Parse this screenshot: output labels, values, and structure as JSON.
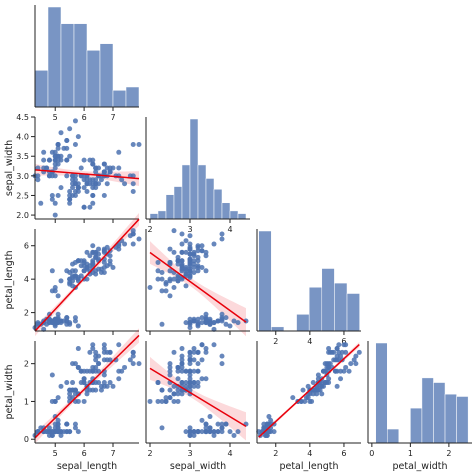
{
  "chart_data": {
    "type": "pairplot",
    "title": "",
    "variables": [
      "sepal_length",
      "sepal_width",
      "petal_length",
      "petal_width"
    ],
    "corner": true,
    "diagonal": "histogram",
    "offdiagonal": "scatter with linear regression fit and confidence band",
    "colors": {
      "points": "#4c72b0",
      "bars": "#4c72b0",
      "regression": "#e8000b"
    },
    "axes": {
      "sepal_length": {
        "range": [
          4.3,
          7.9
        ],
        "ticks": [
          5,
          6,
          7
        ],
        "tick_labels": [
          "5",
          "6",
          "7"
        ]
      },
      "sepal_width": {
        "range": [
          1.9,
          4.5
        ],
        "ticks": [
          2.0,
          2.5,
          3.0,
          3.5,
          4.0,
          4.5
        ],
        "tick_labels": [
          "2.0",
          "2.5",
          "3.0",
          "3.5",
          "4.0",
          "4.5"
        ],
        "x_ticks": [
          2,
          3,
          4
        ],
        "x_tick_labels": [
          "2",
          "3",
          "4"
        ]
      },
      "petal_length": {
        "range": [
          0.9,
          7.0
        ],
        "ticks": [
          2,
          4,
          6
        ],
        "tick_labels": [
          "2",
          "4",
          "6"
        ]
      },
      "petal_width": {
        "range": [
          -0.1,
          2.6
        ],
        "ticks": [
          0,
          1,
          2
        ],
        "tick_labels": [
          "0",
          "1",
          "2"
        ]
      }
    },
    "histograms": {
      "sepal_length": {
        "bin_edges": [
          4.3,
          4.75,
          5.2,
          5.65,
          6.1,
          6.55,
          7.0,
          7.45,
          7.9
        ],
        "counts": [
          11,
          30,
          25,
          25,
          17,
          19,
          5,
          6
        ]
      },
      "sepal_width": {
        "bin_edges": [
          2.0,
          2.2,
          2.4,
          2.6,
          2.8,
          3.0,
          3.2,
          3.4,
          3.6,
          3.8,
          4.0,
          4.2,
          4.4
        ],
        "counts": [
          2,
          3,
          9,
          12,
          20,
          37,
          20,
          15,
          11,
          6,
          3,
          2
        ]
      },
      "petal_length": {
        "bin_edges": [
          1.0,
          1.74,
          2.48,
          3.22,
          3.96,
          4.7,
          5.44,
          6.18,
          6.92
        ],
        "counts": [
          48,
          2,
          0,
          8,
          21,
          30,
          23,
          18
        ]
      },
      "petal_width": {
        "bin_edges": [
          0.1,
          0.4,
          0.7,
          1.0,
          1.3,
          1.6,
          1.9,
          2.2,
          2.5
        ],
        "counts": [
          43,
          6,
          0,
          15,
          28,
          26,
          21,
          20
        ]
      }
    },
    "scatter": {
      "sepal_length": [
        5.1,
        4.9,
        4.7,
        4.6,
        5.0,
        5.4,
        4.6,
        5.0,
        4.4,
        4.9,
        5.4,
        4.8,
        4.8,
        4.3,
        5.8,
        5.7,
        5.4,
        5.1,
        5.7,
        5.1,
        5.4,
        5.1,
        4.6,
        5.1,
        4.8,
        5.0,
        5.0,
        5.2,
        5.2,
        4.7,
        4.8,
        5.4,
        5.2,
        5.5,
        4.9,
        5.0,
        5.5,
        4.9,
        4.4,
        5.1,
        5.0,
        4.5,
        4.4,
        5.0,
        5.1,
        4.8,
        5.1,
        4.6,
        5.3,
        5.0,
        7.0,
        6.4,
        6.9,
        5.5,
        6.5,
        5.7,
        6.3,
        4.9,
        6.6,
        5.2,
        5.0,
        5.9,
        6.0,
        6.1,
        5.6,
        6.7,
        5.6,
        5.8,
        6.2,
        5.6,
        5.9,
        6.1,
        6.3,
        6.1,
        6.4,
        6.6,
        6.8,
        6.7,
        6.0,
        5.7,
        5.5,
        5.5,
        5.8,
        6.0,
        5.4,
        6.0,
        6.7,
        6.3,
        5.6,
        5.5,
        5.5,
        6.1,
        5.8,
        5.0,
        5.6,
        5.7,
        5.7,
        6.2,
        5.1,
        5.7,
        6.3,
        5.8,
        7.1,
        6.3,
        6.5,
        7.6,
        4.9,
        7.3,
        6.7,
        7.2,
        6.5,
        6.4,
        6.8,
        5.7,
        5.8,
        6.4,
        6.5,
        7.7,
        7.7,
        6.0,
        6.9,
        5.6,
        7.7,
        6.3,
        6.7,
        7.2,
        6.2,
        6.1,
        6.4,
        7.2,
        7.4,
        7.9,
        6.4,
        6.3,
        6.1,
        7.7,
        6.3,
        6.4,
        6.0,
        6.9,
        6.7,
        6.9,
        5.8,
        6.8,
        6.7,
        6.7,
        6.3,
        6.5,
        6.2,
        5.9
      ],
      "sepal_width": [
        3.5,
        3.0,
        3.2,
        3.1,
        3.6,
        3.9,
        3.4,
        3.4,
        2.9,
        3.1,
        3.7,
        3.4,
        3.0,
        3.0,
        4.0,
        4.4,
        3.9,
        3.5,
        3.8,
        3.8,
        3.4,
        3.7,
        3.6,
        3.3,
        3.4,
        3.0,
        3.4,
        3.5,
        3.4,
        3.2,
        3.1,
        3.4,
        4.1,
        4.2,
        3.1,
        3.2,
        3.5,
        3.6,
        3.0,
        3.4,
        3.5,
        2.3,
        3.2,
        3.5,
        3.8,
        3.0,
        3.8,
        3.2,
        3.7,
        3.3,
        3.2,
        3.2,
        3.1,
        2.3,
        2.8,
        2.8,
        3.3,
        2.4,
        2.9,
        2.7,
        2.0,
        3.0,
        2.2,
        2.9,
        2.9,
        3.1,
        3.0,
        2.7,
        2.2,
        2.5,
        3.2,
        2.8,
        2.5,
        2.8,
        2.9,
        3.0,
        2.8,
        3.0,
        2.9,
        2.6,
        2.4,
        2.4,
        2.7,
        2.7,
        3.0,
        3.4,
        3.1,
        2.3,
        3.0,
        2.5,
        2.6,
        3.0,
        2.6,
        2.3,
        2.7,
        3.0,
        2.9,
        2.9,
        2.5,
        2.8,
        3.3,
        2.7,
        3.0,
        2.9,
        3.0,
        3.0,
        2.5,
        2.9,
        2.5,
        3.6,
        3.2,
        2.7,
        3.0,
        2.5,
        2.8,
        3.2,
        3.0,
        3.8,
        2.6,
        2.2,
        3.2,
        2.8,
        2.8,
        2.7,
        3.3,
        3.2,
        2.8,
        3.0,
        2.8,
        3.0,
        2.8,
        3.8,
        2.8,
        2.8,
        2.6,
        3.0,
        3.4,
        3.1,
        3.0,
        3.1,
        3.1,
        3.1,
        2.7,
        3.2,
        3.3,
        3.0,
        2.5,
        3.0,
        3.4,
        3.0
      ],
      "petal_length": [
        1.4,
        1.4,
        1.3,
        1.5,
        1.4,
        1.7,
        1.4,
        1.5,
        1.4,
        1.5,
        1.5,
        1.6,
        1.4,
        1.1,
        1.2,
        1.5,
        1.3,
        1.4,
        1.7,
        1.5,
        1.7,
        1.5,
        1.0,
        1.7,
        1.9,
        1.6,
        1.6,
        1.5,
        1.4,
        1.6,
        1.6,
        1.5,
        1.5,
        1.4,
        1.5,
        1.2,
        1.3,
        1.4,
        1.3,
        1.5,
        1.3,
        1.3,
        1.3,
        1.6,
        1.9,
        1.4,
        1.6,
        1.4,
        1.5,
        1.4,
        4.7,
        4.5,
        4.9,
        4.0,
        4.6,
        4.5,
        4.7,
        3.3,
        4.6,
        3.9,
        3.5,
        4.2,
        4.0,
        4.7,
        3.6,
        4.4,
        4.5,
        4.1,
        4.5,
        3.9,
        4.8,
        4.0,
        4.9,
        4.7,
        4.3,
        4.4,
        4.8,
        5.0,
        4.5,
        3.5,
        3.8,
        3.7,
        3.9,
        5.1,
        4.5,
        4.5,
        4.7,
        4.4,
        4.1,
        4.0,
        4.4,
        4.6,
        4.0,
        3.3,
        4.2,
        4.2,
        4.2,
        4.3,
        3.0,
        4.1,
        6.0,
        5.1,
        5.9,
        5.6,
        5.8,
        6.6,
        4.5,
        6.3,
        5.8,
        6.1,
        5.1,
        5.3,
        5.5,
        5.0,
        5.1,
        5.3,
        5.5,
        6.7,
        6.9,
        5.0,
        5.7,
        4.9,
        6.7,
        4.9,
        5.7,
        6.0,
        4.8,
        4.9,
        5.6,
        5.8,
        6.1,
        6.4,
        5.6,
        5.1,
        5.6,
        6.1,
        5.6,
        5.5,
        4.8,
        5.4,
        5.6,
        5.1,
        5.1,
        5.9,
        5.7,
        5.2,
        5.0,
        5.2,
        5.4,
        5.1
      ],
      "petal_width": [
        0.2,
        0.2,
        0.2,
        0.2,
        0.2,
        0.4,
        0.3,
        0.2,
        0.2,
        0.1,
        0.2,
        0.2,
        0.1,
        0.1,
        0.2,
        0.4,
        0.4,
        0.3,
        0.3,
        0.3,
        0.2,
        0.4,
        0.2,
        0.5,
        0.2,
        0.2,
        0.4,
        0.2,
        0.2,
        0.2,
        0.2,
        0.4,
        0.1,
        0.2,
        0.2,
        0.2,
        0.2,
        0.1,
        0.2,
        0.2,
        0.3,
        0.3,
        0.2,
        0.6,
        0.4,
        0.3,
        0.2,
        0.2,
        0.2,
        0.2,
        1.4,
        1.5,
        1.5,
        1.3,
        1.5,
        1.3,
        1.6,
        1.0,
        1.3,
        1.4,
        1.0,
        1.5,
        1.0,
        1.4,
        1.3,
        1.4,
        1.5,
        1.0,
        1.5,
        1.1,
        1.8,
        1.3,
        1.5,
        1.2,
        1.3,
        1.4,
        1.4,
        1.7,
        1.5,
        1.0,
        1.1,
        1.0,
        1.2,
        1.6,
        1.5,
        1.6,
        1.5,
        1.3,
        1.3,
        1.3,
        1.2,
        1.4,
        1.2,
        1.0,
        1.3,
        1.2,
        1.3,
        1.3,
        1.1,
        1.3,
        2.5,
        1.9,
        2.1,
        1.8,
        2.2,
        2.1,
        1.7,
        1.8,
        1.8,
        2.5,
        2.0,
        1.9,
        2.1,
        2.0,
        2.4,
        2.3,
        1.8,
        2.2,
        2.3,
        1.5,
        2.3,
        2.0,
        2.0,
        1.8,
        2.1,
        1.8,
        1.8,
        1.8,
        2.1,
        1.6,
        1.9,
        2.0,
        2.2,
        1.5,
        1.4,
        2.3,
        2.4,
        1.8,
        1.8,
        2.1,
        2.4,
        2.3,
        1.9,
        2.3,
        2.5,
        2.3,
        1.9,
        2.0,
        2.3,
        1.8
      ]
    },
    "regression_fits": [
      {
        "x": "sepal_length",
        "y": "sepal_width",
        "slope": -0.0619,
        "intercept": 3.4189
      },
      {
        "x": "sepal_length",
        "y": "petal_length",
        "slope": 1.8584,
        "intercept": -7.1014
      },
      {
        "x": "sepal_width",
        "y": "petal_length",
        "slope": -1.7351,
        "intercept": 9.0632
      },
      {
        "x": "sepal_length",
        "y": "petal_width",
        "slope": 0.7529,
        "intercept": -3.2002
      },
      {
        "x": "sepal_width",
        "y": "petal_width",
        "slope": -0.6403,
        "intercept": 3.1569
      },
      {
        "x": "petal_length",
        "y": "petal_width",
        "slope": 0.4158,
        "intercept": -0.3631
      }
    ]
  }
}
